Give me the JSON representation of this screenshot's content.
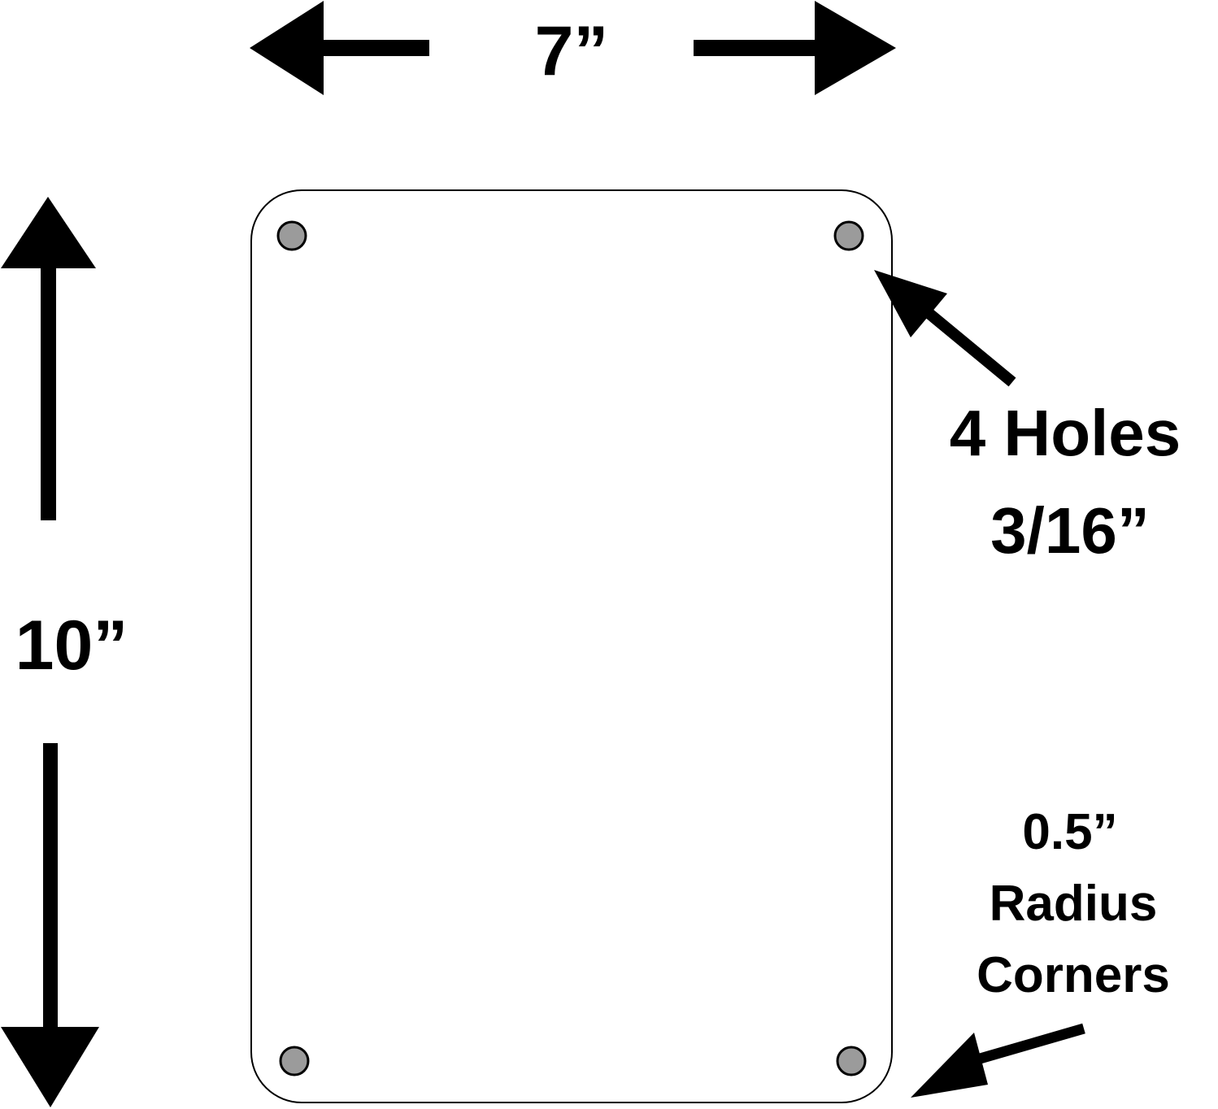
{
  "width_dimension": {
    "label": "7”"
  },
  "height_dimension": {
    "label": "10”"
  },
  "holes_callout": {
    "line1": "4 Holes",
    "line2": "3/16”"
  },
  "radius_callout": {
    "line1": "0.5”",
    "line2": "Radius",
    "line3": "Corners"
  },
  "colors": {
    "ink": "#000000",
    "panel_fill": "#ffffff",
    "hole_fill": "#9b9b9b"
  },
  "icons": {
    "holes": "circle-hole-icon",
    "arrows": "arrow-icon"
  }
}
